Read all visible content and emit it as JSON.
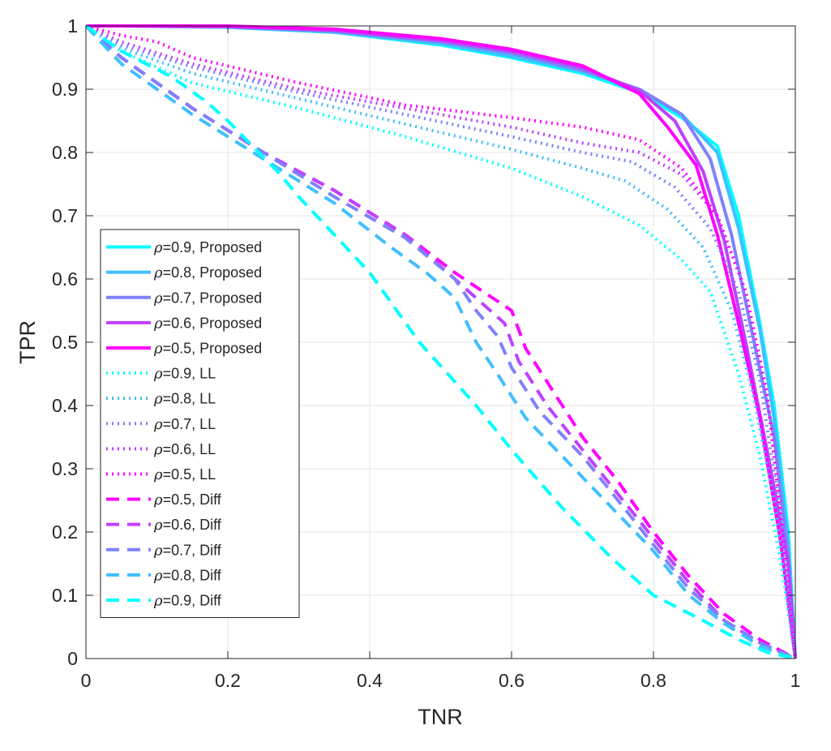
{
  "chart_data": {
    "type": "line",
    "title": "",
    "xlabel": "TNR",
    "ylabel": "TPR",
    "xlim": [
      0,
      1
    ],
    "ylim": [
      0,
      1
    ],
    "grid": true,
    "legend_position": "left-middle",
    "xticks": [
      0,
      0.2,
      0.4,
      0.6,
      0.8,
      1
    ],
    "xtick_labels": [
      "0",
      "0.2",
      "0.4",
      "0.6",
      "0.8",
      "1"
    ],
    "yticks": [
      0,
      0.1,
      0.2,
      0.3,
      0.4,
      0.5,
      0.6,
      0.7,
      0.8,
      0.9,
      1
    ],
    "ytick_labels": [
      "0",
      "0.1",
      "0.2",
      "0.3",
      "0.4",
      "0.5",
      "0.6",
      "0.7",
      "0.8",
      "0.9",
      "1"
    ],
    "series": [
      {
        "name": "ρ=0.9, Proposed",
        "rho": "ρ",
        "label_rest": "=0.9, Proposed",
        "style": "solid",
        "color": "#00FFFF",
        "x": [
          0,
          0.05,
          0.2,
          0.35,
          0.5,
          0.6,
          0.7,
          0.78,
          0.84,
          0.89,
          0.92,
          0.95,
          0.97,
          0.99,
          1.0
        ],
        "y": [
          1.0,
          1.0,
          0.998,
          0.99,
          0.97,
          0.95,
          0.925,
          0.895,
          0.855,
          0.81,
          0.7,
          0.53,
          0.4,
          0.2,
          0.0
        ]
      },
      {
        "name": "ρ=0.8, Proposed",
        "rho": "ρ",
        "label_rest": "=0.8, Proposed",
        "style": "solid",
        "color": "#40BFFF",
        "x": [
          0,
          0.05,
          0.2,
          0.35,
          0.5,
          0.6,
          0.7,
          0.78,
          0.84,
          0.89,
          0.92,
          0.95,
          0.97,
          0.99,
          1.0
        ],
        "y": [
          1.0,
          1.0,
          0.998,
          0.99,
          0.972,
          0.952,
          0.928,
          0.9,
          0.86,
          0.8,
          0.68,
          0.52,
          0.38,
          0.18,
          0.0
        ]
      },
      {
        "name": "ρ=0.7, Proposed",
        "rho": "ρ",
        "label_rest": "=0.7, Proposed",
        "style": "solid",
        "color": "#8080FF",
        "x": [
          0,
          0.05,
          0.2,
          0.35,
          0.5,
          0.6,
          0.7,
          0.78,
          0.84,
          0.88,
          0.91,
          0.94,
          0.97,
          0.99,
          1.0
        ],
        "y": [
          1.0,
          1.0,
          0.999,
          0.992,
          0.975,
          0.957,
          0.93,
          0.9,
          0.86,
          0.79,
          0.67,
          0.51,
          0.35,
          0.16,
          0.0
        ]
      },
      {
        "name": "ρ=0.6, Proposed",
        "rho": "ρ",
        "label_rest": "=0.6, Proposed",
        "style": "solid",
        "color": "#BF40FF",
        "x": [
          0,
          0.05,
          0.2,
          0.35,
          0.5,
          0.6,
          0.7,
          0.78,
          0.83,
          0.87,
          0.9,
          0.93,
          0.96,
          0.99,
          1.0
        ],
        "y": [
          1.0,
          1.0,
          0.999,
          0.993,
          0.977,
          0.96,
          0.934,
          0.898,
          0.85,
          0.77,
          0.66,
          0.5,
          0.33,
          0.15,
          0.0
        ]
      },
      {
        "name": "ρ=0.5, Proposed",
        "rho": "ρ",
        "label_rest": "=0.5, Proposed",
        "style": "solid",
        "color": "#FF00FF",
        "x": [
          0,
          0.05,
          0.2,
          0.35,
          0.5,
          0.6,
          0.7,
          0.78,
          0.82,
          0.86,
          0.89,
          0.92,
          0.95,
          0.98,
          1.0
        ],
        "y": [
          1.0,
          1.0,
          1.0,
          0.995,
          0.98,
          0.963,
          0.937,
          0.893,
          0.84,
          0.78,
          0.67,
          0.53,
          0.38,
          0.18,
          0.0
        ]
      },
      {
        "name": "ρ=0.9, LL",
        "rho": "ρ",
        "label_rest": "=0.9, LL",
        "style": "dotted",
        "color": "#00FFFF",
        "x": [
          0,
          0.05,
          0.15,
          0.3,
          0.45,
          0.6,
          0.7,
          0.78,
          0.84,
          0.88,
          0.92,
          0.95,
          0.98,
          1.0
        ],
        "y": [
          1.0,
          0.96,
          0.91,
          0.87,
          0.825,
          0.775,
          0.73,
          0.685,
          0.63,
          0.58,
          0.45,
          0.32,
          0.15,
          0.0
        ]
      },
      {
        "name": "ρ=0.8, LL",
        "rho": "ρ",
        "label_rest": "=0.8, LL",
        "style": "dotted",
        "color": "#40BFFF",
        "x": [
          0,
          0.05,
          0.15,
          0.3,
          0.45,
          0.6,
          0.7,
          0.76,
          0.82,
          0.87,
          0.91,
          0.94,
          0.97,
          0.99,
          1.0
        ],
        "y": [
          1.0,
          0.965,
          0.925,
          0.885,
          0.845,
          0.805,
          0.775,
          0.755,
          0.71,
          0.65,
          0.55,
          0.42,
          0.25,
          0.1,
          0.0
        ]
      },
      {
        "name": "ρ=0.7, LL",
        "rho": "ρ",
        "label_rest": "=0.7, LL",
        "style": "dotted",
        "color": "#8080FF",
        "x": [
          0,
          0.05,
          0.15,
          0.3,
          0.45,
          0.6,
          0.7,
          0.77,
          0.83,
          0.88,
          0.92,
          0.95,
          0.98,
          1.0
        ],
        "y": [
          1.0,
          0.97,
          0.935,
          0.895,
          0.86,
          0.825,
          0.8,
          0.785,
          0.745,
          0.68,
          0.58,
          0.44,
          0.22,
          0.0
        ]
      },
      {
        "name": "ρ=0.6, LL",
        "rho": "ρ",
        "label_rest": "=0.6, LL",
        "style": "dotted",
        "color": "#BF40FF",
        "x": [
          0,
          0.05,
          0.15,
          0.3,
          0.45,
          0.6,
          0.7,
          0.78,
          0.84,
          0.89,
          0.93,
          0.96,
          0.98,
          1.0
        ],
        "y": [
          1.0,
          0.975,
          0.94,
          0.9,
          0.87,
          0.84,
          0.815,
          0.8,
          0.765,
          0.7,
          0.58,
          0.42,
          0.22,
          0.0
        ]
      },
      {
        "name": "ρ=0.5, LL",
        "rho": "ρ",
        "label_rest": "=0.5, LL",
        "style": "dotted",
        "color": "#FF00FF",
        "x": [
          0,
          0.05,
          0.1,
          0.15,
          0.3,
          0.45,
          0.6,
          0.7,
          0.78,
          0.84,
          0.89,
          0.93,
          0.96,
          0.98,
          1.0
        ],
        "y": [
          1.0,
          0.985,
          0.975,
          0.95,
          0.91,
          0.875,
          0.855,
          0.84,
          0.82,
          0.775,
          0.7,
          0.58,
          0.42,
          0.22,
          0.0
        ]
      },
      {
        "name": "ρ=0.5, Diff",
        "rho": "ρ",
        "label_rest": "=0.5, Diff",
        "style": "dashed",
        "color": "#FF00FF",
        "x": [
          0,
          0.05,
          0.15,
          0.25,
          0.35,
          0.45,
          0.52,
          0.56,
          0.6,
          0.62,
          0.66,
          0.7,
          0.75,
          0.8,
          0.85,
          0.9,
          0.95,
          1.0
        ],
        "y": [
          1.0,
          0.95,
          0.87,
          0.8,
          0.74,
          0.67,
          0.61,
          0.58,
          0.55,
          0.49,
          0.42,
          0.35,
          0.28,
          0.2,
          0.13,
          0.07,
          0.03,
          0.0
        ]
      },
      {
        "name": "ρ=0.6, Diff",
        "rho": "ρ",
        "label_rest": "=0.6, Diff",
        "style": "dashed",
        "color": "#BF40FF",
        "x": [
          0,
          0.05,
          0.15,
          0.25,
          0.35,
          0.45,
          0.52,
          0.56,
          0.59,
          0.61,
          0.65,
          0.7,
          0.75,
          0.8,
          0.85,
          0.9,
          0.95,
          1.0
        ],
        "y": [
          1.0,
          0.95,
          0.87,
          0.8,
          0.74,
          0.67,
          0.6,
          0.56,
          0.53,
          0.47,
          0.4,
          0.33,
          0.26,
          0.19,
          0.12,
          0.06,
          0.025,
          0.0
        ]
      },
      {
        "name": "ρ=0.7, Diff",
        "rho": "ρ",
        "label_rest": "=0.7, Diff",
        "style": "dashed",
        "color": "#8080FF",
        "x": [
          0,
          0.05,
          0.15,
          0.25,
          0.35,
          0.45,
          0.52,
          0.55,
          0.58,
          0.6,
          0.64,
          0.7,
          0.75,
          0.8,
          0.85,
          0.9,
          0.95,
          1.0
        ],
        "y": [
          1.0,
          0.95,
          0.87,
          0.8,
          0.73,
          0.665,
          0.6,
          0.55,
          0.51,
          0.46,
          0.39,
          0.32,
          0.25,
          0.18,
          0.11,
          0.06,
          0.025,
          0.0
        ]
      },
      {
        "name": "ρ=0.8, Diff",
        "rho": "ρ",
        "label_rest": "=0.8, Diff",
        "style": "dashed",
        "color": "#40BFFF",
        "x": [
          0,
          0.05,
          0.15,
          0.25,
          0.35,
          0.43,
          0.48,
          0.52,
          0.55,
          0.58,
          0.62,
          0.68,
          0.74,
          0.8,
          0.85,
          0.9,
          0.95,
          1.0
        ],
        "y": [
          1.0,
          0.94,
          0.86,
          0.79,
          0.72,
          0.65,
          0.61,
          0.57,
          0.5,
          0.45,
          0.38,
          0.31,
          0.24,
          0.17,
          0.1,
          0.055,
          0.02,
          0.0
        ]
      },
      {
        "name": "ρ=0.9, Diff",
        "rho": "ρ",
        "label_rest": "=0.9, Diff",
        "style": "dashed",
        "color": "#00FFFF",
        "x": [
          0,
          0.05,
          0.12,
          0.17,
          0.2,
          0.27,
          0.3,
          0.35,
          0.4,
          0.47,
          0.55,
          0.6,
          0.67,
          0.74,
          0.8,
          0.87,
          0.92,
          0.96,
          1.0
        ],
        "y": [
          1.0,
          0.96,
          0.92,
          0.88,
          0.85,
          0.77,
          0.73,
          0.67,
          0.61,
          0.5,
          0.4,
          0.33,
          0.24,
          0.16,
          0.1,
          0.06,
          0.03,
          0.01,
          0.0
        ]
      }
    ]
  }
}
